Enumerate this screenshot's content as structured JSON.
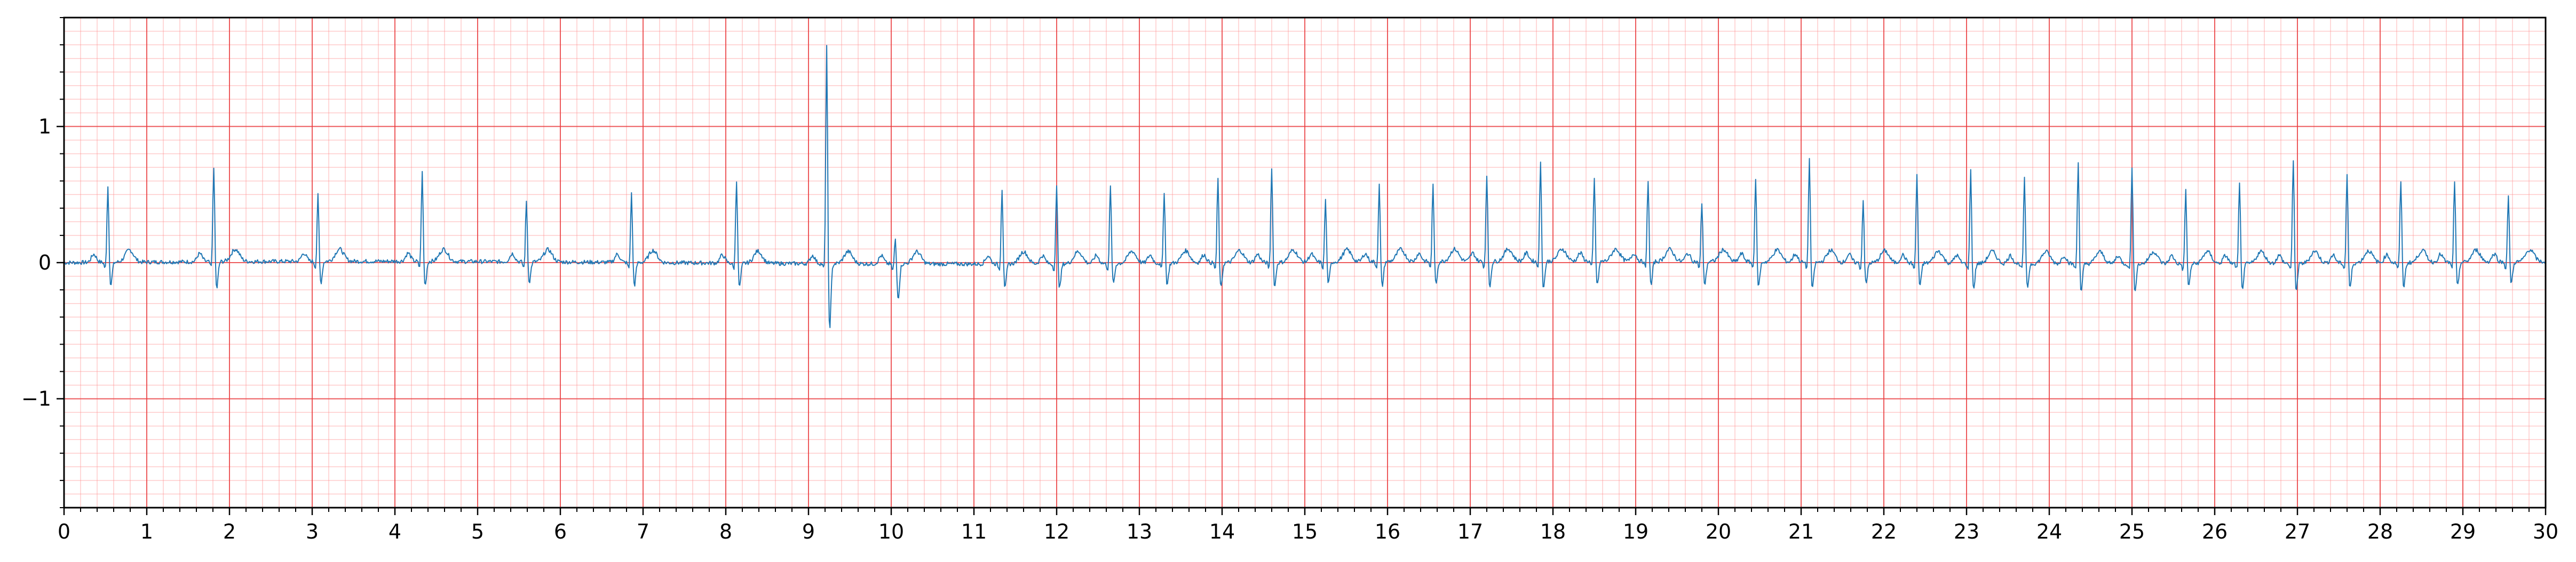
{
  "chart_data": {
    "type": "line",
    "title": "",
    "xlabel": "",
    "ylabel": "",
    "xlim": [
      0,
      30
    ],
    "ylim": [
      -1.8,
      1.8
    ],
    "grid": true,
    "legend": "none",
    "x_ticks": [
      0,
      1,
      2,
      3,
      4,
      5,
      6,
      7,
      8,
      9,
      10,
      11,
      12,
      13,
      14,
      15,
      16,
      17,
      18,
      19,
      20,
      21,
      22,
      23,
      24,
      25,
      26,
      27,
      28,
      29,
      30
    ],
    "x_tick_labels": [
      "0",
      "1",
      "2",
      "3",
      "4",
      "5",
      "6",
      "7",
      "8",
      "9",
      "10",
      "11",
      "12",
      "13",
      "14",
      "15",
      "16",
      "17",
      "18",
      "19",
      "20",
      "21",
      "22",
      "23",
      "24",
      "25",
      "26",
      "27",
      "28",
      "29",
      "30"
    ],
    "y_ticks": [
      -1,
      0,
      1
    ],
    "y_tick_labels": [
      "−1",
      "0",
      "1"
    ],
    "x_minor_step": 0.2,
    "y_minor_step": 0.2,
    "x_grid_minor_step": 0.2,
    "y_grid_minor_step": 0.1,
    "series": [
      {
        "color": "#1f77b4",
        "sampling_rate_hz": 100,
        "beats": [
          {
            "t": 0.53,
            "r": 0.58,
            "s": -0.17
          },
          {
            "t": 1.81,
            "r": 0.72,
            "s": -0.2
          },
          {
            "t": 3.07,
            "r": 0.5,
            "s": -0.16
          },
          {
            "t": 4.33,
            "r": 0.67,
            "s": -0.18
          },
          {
            "t": 5.59,
            "r": 0.46,
            "s": -0.15
          },
          {
            "t": 6.86,
            "r": 0.52,
            "s": -0.17
          },
          {
            "t": 8.13,
            "r": 0.63,
            "s": -0.18
          },
          {
            "t": 9.22,
            "r": 1.65,
            "s": -0.48
          },
          {
            "t": 10.05,
            "r": 0.2,
            "s": -0.25
          },
          {
            "t": 11.34,
            "r": 0.57,
            "s": -0.18
          },
          {
            "t": 12.0,
            "r": 0.58,
            "s": -0.18
          },
          {
            "t": 12.65,
            "r": 0.58,
            "s": -0.15
          },
          {
            "t": 13.3,
            "r": 0.54,
            "s": -0.16
          },
          {
            "t": 13.95,
            "r": 0.64,
            "s": -0.19
          },
          {
            "t": 14.6,
            "r": 0.72,
            "s": -0.18
          },
          {
            "t": 15.25,
            "r": 0.47,
            "s": -0.16
          },
          {
            "t": 15.9,
            "r": 0.58,
            "s": -0.18
          },
          {
            "t": 16.55,
            "r": 0.58,
            "s": -0.17
          },
          {
            "t": 17.2,
            "r": 0.66,
            "s": -0.19
          },
          {
            "t": 17.85,
            "r": 0.74,
            "s": -0.2
          },
          {
            "t": 18.5,
            "r": 0.62,
            "s": -0.18
          },
          {
            "t": 19.15,
            "r": 0.62,
            "s": -0.18
          },
          {
            "t": 19.8,
            "r": 0.44,
            "s": -0.17
          },
          {
            "t": 20.45,
            "r": 0.63,
            "s": -0.18
          },
          {
            "t": 21.1,
            "r": 0.77,
            "s": -0.2
          },
          {
            "t": 21.75,
            "r": 0.48,
            "s": -0.16
          },
          {
            "t": 22.4,
            "r": 0.67,
            "s": -0.18
          },
          {
            "t": 23.05,
            "r": 0.7,
            "s": -0.19
          },
          {
            "t": 23.7,
            "r": 0.64,
            "s": -0.18
          },
          {
            "t": 24.35,
            "r": 0.77,
            "s": -0.21
          },
          {
            "t": 25.0,
            "r": 0.72,
            "s": -0.2
          },
          {
            "t": 25.65,
            "r": 0.56,
            "s": -0.17
          },
          {
            "t": 26.3,
            "r": 0.6,
            "s": -0.18
          },
          {
            "t": 26.95,
            "r": 0.77,
            "s": -0.2
          },
          {
            "t": 27.6,
            "r": 0.67,
            "s": -0.19
          },
          {
            "t": 28.25,
            "r": 0.62,
            "s": -0.18
          },
          {
            "t": 28.9,
            "r": 0.6,
            "s": -0.18
          },
          {
            "t": 29.55,
            "r": 0.5,
            "s": -0.16
          }
        ]
      }
    ]
  }
}
